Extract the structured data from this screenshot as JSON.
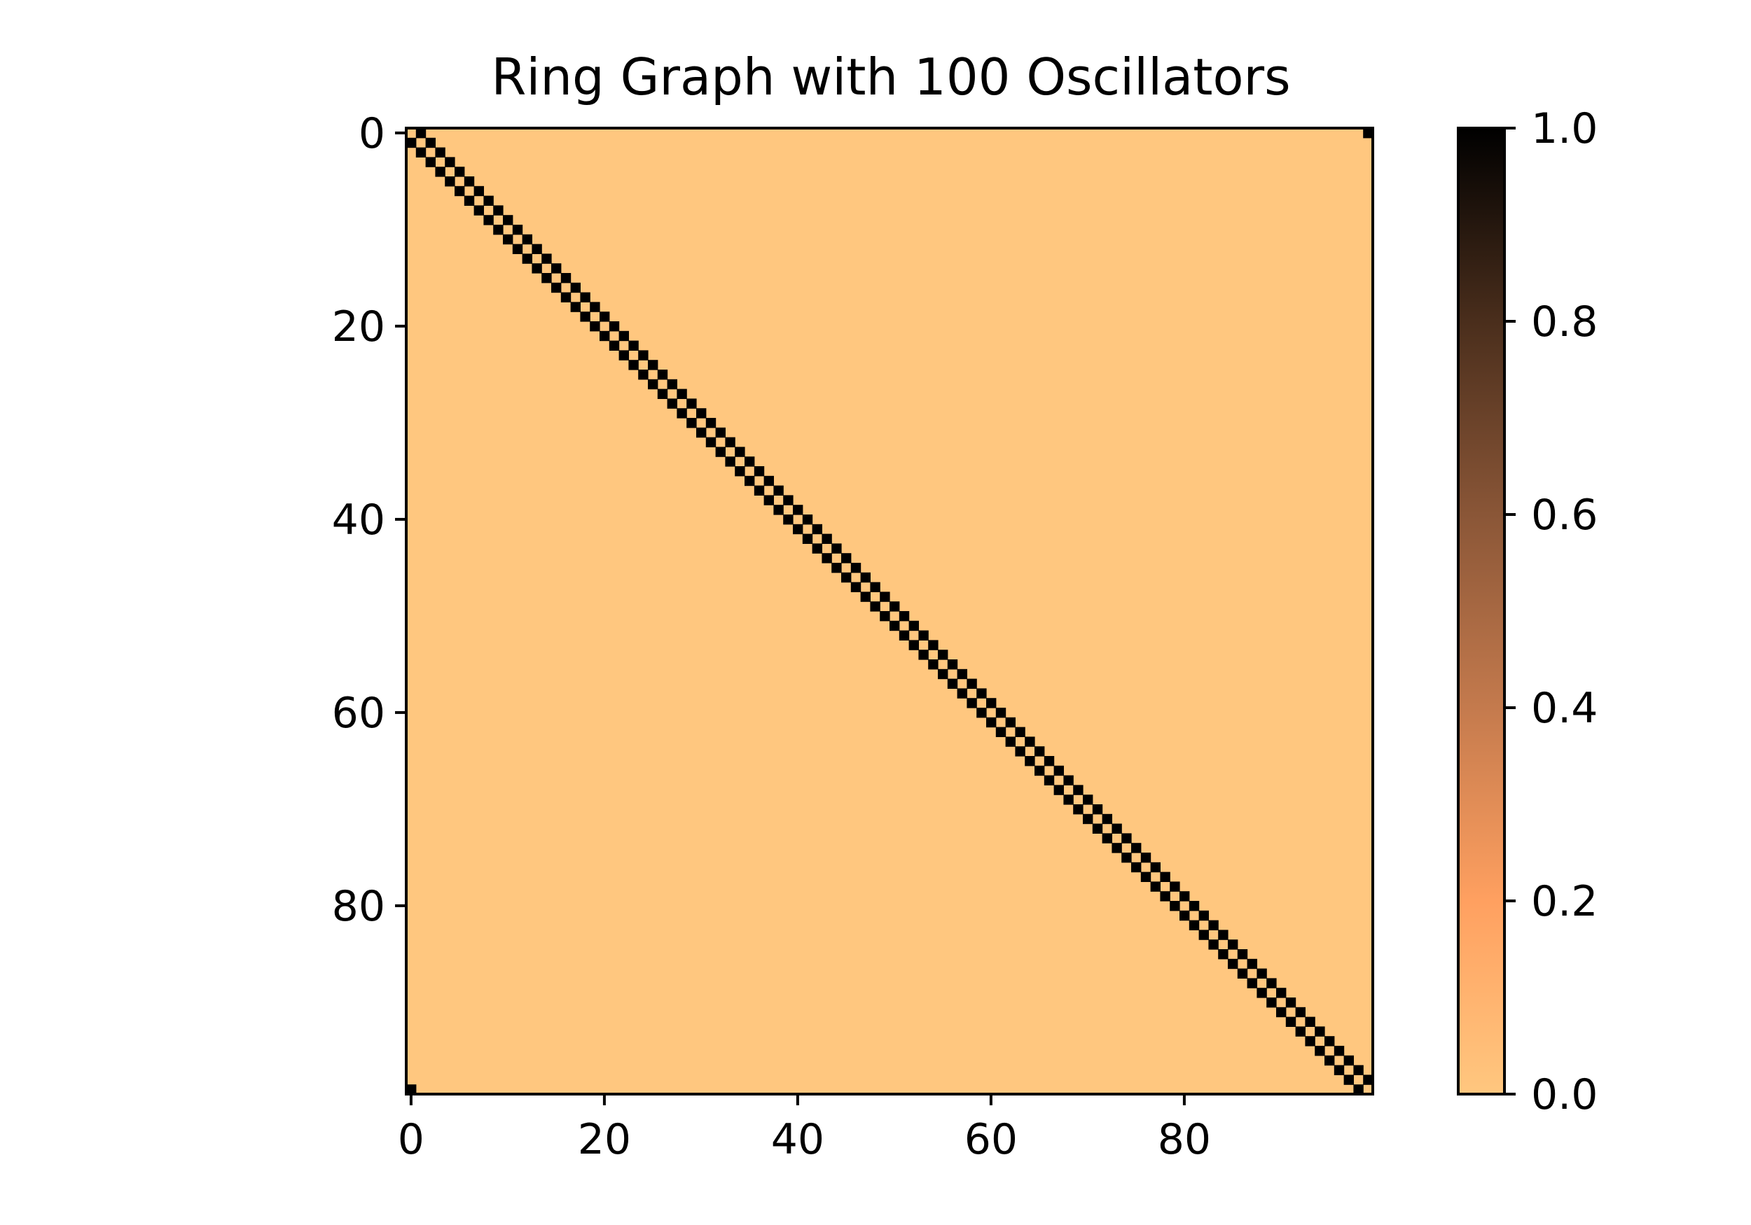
{
  "chart_data": {
    "type": "heatmap",
    "title": "Ring Graph with 100 Oscillators",
    "xlabel": "",
    "ylabel": "",
    "n": 100,
    "matrix_description_rule": "ring adjacency: cell (i,j) = 1 when |i-j| == 1 or |i-j| == 99, else 0",
    "nonzero_offsets": [
      1,
      99
    ],
    "x_ticks": [
      0,
      20,
      40,
      60,
      80
    ],
    "y_ticks": [
      0,
      20,
      40,
      60,
      80
    ],
    "x_tick_labels": [
      "0",
      "20",
      "40",
      "60",
      "80"
    ],
    "y_tick_labels": [
      "0",
      "20",
      "40",
      "60",
      "80"
    ],
    "value_range": [
      0.0,
      1.0
    ],
    "colormap": "copper_r",
    "colorbar_ticks": [
      0.0,
      0.2,
      0.4,
      0.6,
      0.8,
      1.0
    ],
    "colorbar_tick_labels": [
      "0.0",
      "0.2",
      "0.4",
      "0.6",
      "0.8",
      "1.0"
    ],
    "colors": {
      "low": "#ffc77f",
      "mid": "#c88050",
      "high": "#000000",
      "axis": "#000000"
    },
    "grid": false,
    "legend": "colorbar-right"
  }
}
